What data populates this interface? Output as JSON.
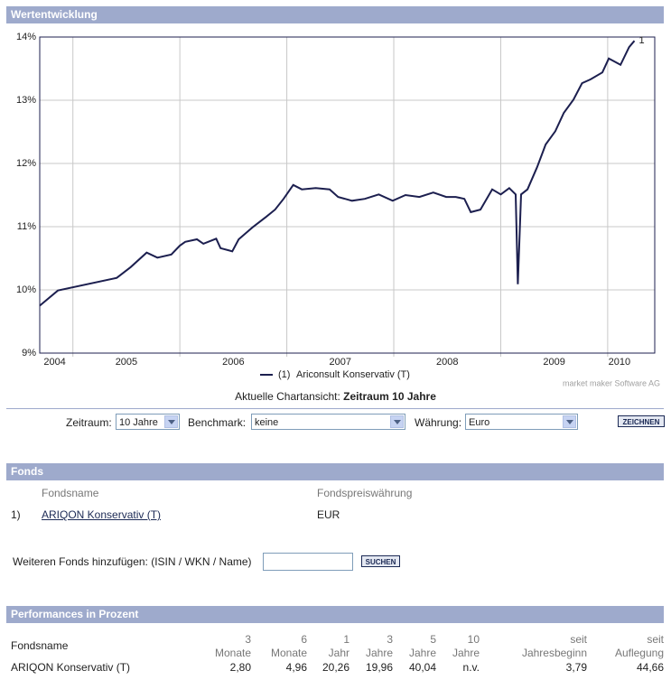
{
  "chart_section": {
    "title": "Wertentwicklung"
  },
  "chart_data": {
    "type": "line",
    "x": [
      2004.69,
      2004.86,
      2005.41,
      2005.54,
      2005.69,
      2005.79,
      2005.92,
      2006.0,
      2006.05,
      2006.16,
      2006.22,
      2006.34,
      2006.38,
      2006.49,
      2006.55,
      2006.68,
      2006.81,
      2006.89,
      2006.97,
      2007.06,
      2007.14,
      2007.27,
      2007.4,
      2007.48,
      2007.61,
      2007.73,
      2007.86,
      2007.99,
      2008.11,
      2008.24,
      2008.37,
      2008.49,
      2008.58,
      2008.66,
      2008.72,
      2008.81,
      2008.92,
      2009.0,
      2009.08,
      2009.14,
      2009.16,
      2009.19,
      2009.25,
      2009.34,
      2009.42,
      2009.51,
      2009.59,
      2009.68,
      2009.76,
      2009.84,
      2009.95,
      2010.01,
      2010.12,
      2010.2,
      2010.25
    ],
    "series": [
      {
        "name": "Ariconsult Konservativ (T)",
        "legend_key": "(1)",
        "end_label": "1",
        "color": "#1c1f4f",
        "values": [
          9.75,
          9.99,
          10.19,
          10.36,
          10.59,
          10.51,
          10.56,
          10.7,
          10.76,
          10.8,
          10.73,
          10.81,
          10.66,
          10.61,
          10.8,
          10.99,
          11.16,
          11.27,
          11.44,
          11.66,
          11.59,
          11.61,
          11.59,
          11.47,
          11.41,
          11.44,
          11.51,
          11.41,
          11.5,
          11.47,
          11.54,
          11.47,
          11.47,
          11.44,
          11.23,
          11.27,
          11.59,
          11.51,
          11.61,
          11.51,
          10.09,
          11.51,
          11.59,
          11.94,
          12.3,
          12.51,
          12.8,
          13.01,
          13.27,
          13.33,
          13.44,
          13.66,
          13.56,
          13.84,
          13.94
        ]
      }
    ],
    "xlim": [
      2004.69,
      2010.44
    ],
    "xticks": [
      {
        "value": 2004.83,
        "label": "2004"
      },
      {
        "value": 2005.5,
        "label": "2005"
      },
      {
        "value": 2006.5,
        "label": "2006"
      },
      {
        "value": 2007.5,
        "label": "2007"
      },
      {
        "value": 2008.5,
        "label": "2008"
      },
      {
        "value": 2009.5,
        "label": "2009"
      },
      {
        "value": 2010.11,
        "label": "2010"
      }
    ],
    "xgrid": [
      2005,
      2006,
      2007,
      2008,
      2009,
      2010
    ],
    "ylim": [
      9,
      14
    ],
    "yticks": [
      {
        "value": 9,
        "label": "9%"
      },
      {
        "value": 10,
        "label": "10%"
      },
      {
        "value": 11,
        "label": "11%"
      },
      {
        "value": 12,
        "label": "12%"
      },
      {
        "value": 13,
        "label": "13%"
      },
      {
        "value": 14,
        "label": "14%"
      }
    ],
    "grid": true,
    "source": "market maker Software AG"
  },
  "view": {
    "label": "Aktuelle Chartansicht:",
    "value": "Zeitraum 10 Jahre"
  },
  "form": {
    "period": {
      "label": "Zeitraum:",
      "value": "10 Jahre"
    },
    "benchmark": {
      "label": "Benchmark:",
      "value": "keine"
    },
    "currency": {
      "label": "Währung:",
      "value": "Euro"
    },
    "button": "ZEICHNEN"
  },
  "funds": {
    "title": "Fonds",
    "headers": [
      "Fondsname",
      "Fondspreiswährung"
    ],
    "rows": [
      [
        "1)",
        "ARIQON Konservativ (T)",
        "EUR"
      ]
    ],
    "add_label": "Weiteren Fonds hinzufügen: (ISIN / WKN / Name)",
    "button": "SUCHEN"
  },
  "performance": {
    "title": "Performances in Prozent",
    "name_header": "Fondsname",
    "headers": [
      [
        "3",
        "Monate"
      ],
      [
        "6",
        "Monate"
      ],
      [
        "1",
        "Jahr"
      ],
      [
        "3",
        "Jahre"
      ],
      [
        "5",
        "Jahre"
      ],
      [
        "10",
        "Jahre"
      ],
      [
        "seit",
        "Jahresbeginn"
      ],
      [
        "seit",
        "Auflegung"
      ]
    ],
    "rows": [
      {
        "name": "ARIQON Konservativ (T)",
        "values": [
          "2,80",
          "4,96",
          "20,26",
          "19,96",
          "40,04",
          "n.v.",
          "3,79",
          "44,66"
        ]
      }
    ]
  }
}
